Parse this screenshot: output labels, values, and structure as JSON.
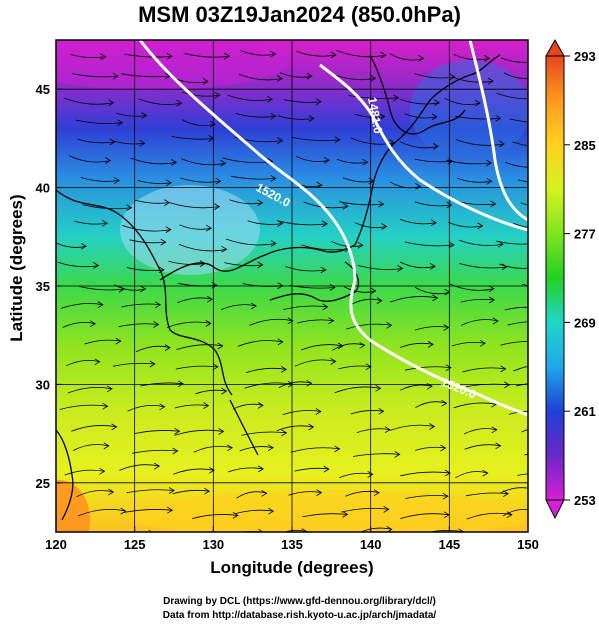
{
  "title": "MSM 03Z19Jan2024 (850.0hPa)",
  "x_axis": {
    "label": "Longitude (degrees)",
    "ticks": [
      "120",
      "125",
      "130",
      "135",
      "140",
      "145",
      "150"
    ]
  },
  "y_axis": {
    "label": "Latitude  (degrees)",
    "ticks": [
      "25",
      "30",
      "35",
      "40",
      "45"
    ]
  },
  "colorbar": {
    "ticks": [
      "293",
      "285",
      "277",
      "269",
      "261",
      "253"
    ],
    "range": [
      253,
      293
    ],
    "colors": [
      "#d61fd6",
      "#6a28c8",
      "#1f3fd6",
      "#1fa8e8",
      "#1fd6c8",
      "#22d122",
      "#7fe51f",
      "#d4f21f",
      "#ffd21f",
      "#ff9a1f",
      "#e8451f"
    ]
  },
  "contours": {
    "labels": [
      "1481.0",
      "1520.0",
      "1520.0"
    ]
  },
  "credits": {
    "line1": "Drawing by DCL (https://www.gfd-dennou.org/library/dcl/)",
    "line2": "Data from http://database.rish.kyoto-u.ac.jp/arch/jmadata/"
  },
  "map_extent": {
    "lon": [
      120,
      150
    ],
    "lat": [
      22.5,
      47.5
    ]
  }
}
